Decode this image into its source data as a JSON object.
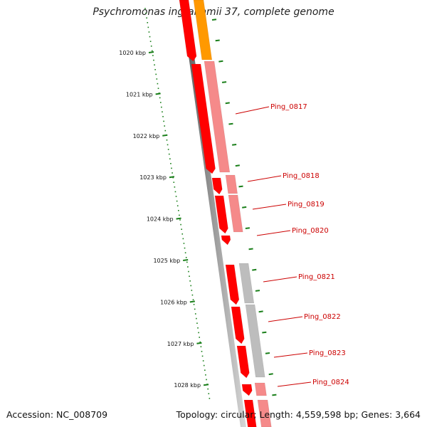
{
  "title": "Psychromonas ingrahamii 37, complete genome",
  "accession": "Accession: NC_008709",
  "summary": "Topology: circular; Length: 4,559,598 bp; Genes: 3,664",
  "kbp_labels": [
    "1020 kbp",
    "1021 kbp",
    "1022 kbp",
    "1023 kbp",
    "1024 kbp",
    "1025 kbp",
    "1026 kbp",
    "1027 kbp",
    "1028 kbp"
  ],
  "gene_labels": [
    "Ping_0817",
    "Ping_0818",
    "Ping_0819",
    "Ping_0820",
    "Ping_0821",
    "Ping_0822",
    "Ping_0823",
    "Ping_0824"
  ],
  "colors": {
    "strand_red": "#ff0000",
    "pink": "#f58a8a",
    "orange": "#ff9900",
    "gray": "#bdbdbd",
    "scale_green": "#1a7f1a",
    "label_red": "#cc0000"
  }
}
